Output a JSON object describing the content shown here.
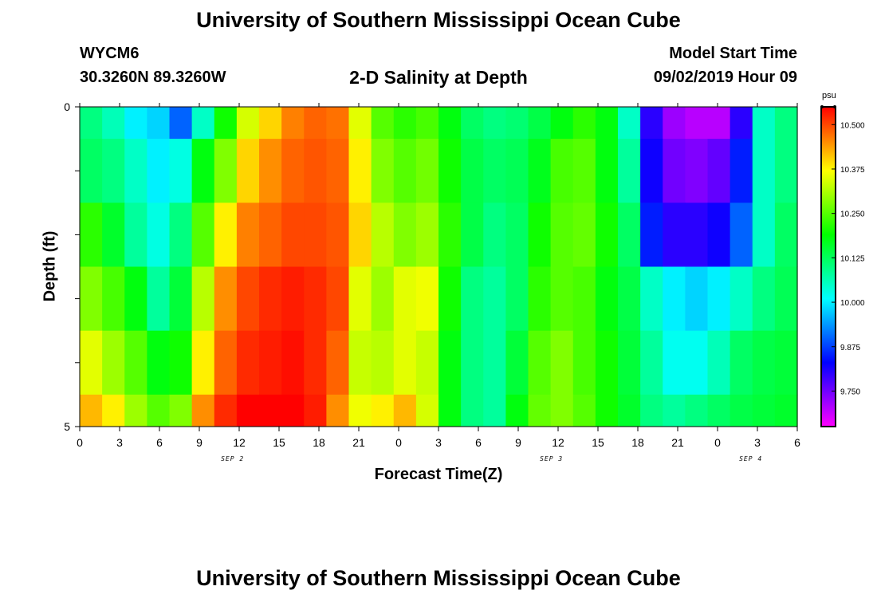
{
  "header": {
    "title": "University of Southern Mississippi Ocean Cube",
    "station_id": "WYCM6",
    "station_coords": "30.3260N 89.3260W",
    "model_label": "Model Start Time",
    "model_start": "09/02/2019 Hour 09",
    "footer_title": "University of Southern Mississippi Ocean Cube"
  },
  "chart_data": {
    "type": "heatmap",
    "title": "2-D Salinity at Depth",
    "xlabel": "Forecast Time(Z)",
    "ylabel": "Depth (ft)",
    "x_hours": [
      0,
      54
    ],
    "y_range": [
      0,
      5
    ],
    "x_tick_labels": [
      "0",
      "3",
      "6",
      "9",
      "12",
      "15",
      "18",
      "21",
      "0",
      "3",
      "6",
      "9",
      "12",
      "15",
      "18",
      "21",
      "0",
      "3",
      "6"
    ],
    "y_tick_labels": [
      "0",
      "5"
    ],
    "date_labels": [
      {
        "text": "SEP 2",
        "hour": 11.5
      },
      {
        "text": "SEP 3",
        "hour": 35.5
      },
      {
        "text": "SEP 4",
        "hour": 50.5
      }
    ],
    "depth_rows": [
      0.0,
      0.5,
      1.5,
      2.5,
      3.5,
      4.5
    ],
    "salinity_rows": [
      [
        10.1,
        10.06,
        10.0,
        9.98,
        9.9,
        10.05,
        10.2,
        10.34,
        10.4,
        10.46,
        10.48,
        10.47,
        10.35,
        10.25,
        10.22,
        10.24,
        10.18,
        10.12,
        10.1,
        10.11,
        10.14,
        10.18,
        10.22,
        10.18,
        10.05,
        9.8,
        9.72,
        9.7,
        9.7,
        9.8,
        10.05,
        10.1
      ],
      [
        10.12,
        10.1,
        10.05,
        10.0,
        10.03,
        10.18,
        10.28,
        10.4,
        10.45,
        10.48,
        10.49,
        10.48,
        10.38,
        10.28,
        10.25,
        10.27,
        10.2,
        10.14,
        10.12,
        10.13,
        10.17,
        10.24,
        10.25,
        10.18,
        10.08,
        9.82,
        9.75,
        9.74,
        9.76,
        9.85,
        10.05,
        10.1
      ],
      [
        10.22,
        10.16,
        10.08,
        10.03,
        10.1,
        10.25,
        10.38,
        10.46,
        10.48,
        10.5,
        10.5,
        10.49,
        10.4,
        10.32,
        10.28,
        10.3,
        10.22,
        10.14,
        10.1,
        10.12,
        10.2,
        10.25,
        10.26,
        10.2,
        10.12,
        9.85,
        9.8,
        9.8,
        9.82,
        9.9,
        10.05,
        10.12
      ],
      [
        10.28,
        10.24,
        10.18,
        10.08,
        10.15,
        10.32,
        10.45,
        10.5,
        10.52,
        10.53,
        10.52,
        10.5,
        10.35,
        10.3,
        10.35,
        10.36,
        10.2,
        10.1,
        10.08,
        10.12,
        10.22,
        10.25,
        10.24,
        10.18,
        10.14,
        10.05,
        10.0,
        9.98,
        10.0,
        10.05,
        10.1,
        10.13
      ],
      [
        10.35,
        10.3,
        10.25,
        10.18,
        10.2,
        10.38,
        10.48,
        10.52,
        10.53,
        10.54,
        10.52,
        10.48,
        10.33,
        10.32,
        10.35,
        10.33,
        10.18,
        10.1,
        10.08,
        10.15,
        10.25,
        10.28,
        10.24,
        10.2,
        10.15,
        10.08,
        10.02,
        10.02,
        10.06,
        10.12,
        10.14,
        10.15
      ],
      [
        10.42,
        10.38,
        10.3,
        10.25,
        10.28,
        10.45,
        10.52,
        10.55,
        10.55,
        10.55,
        10.53,
        10.45,
        10.36,
        10.38,
        10.42,
        10.34,
        10.18,
        10.1,
        10.08,
        10.18,
        10.26,
        10.28,
        10.25,
        10.2,
        10.16,
        10.1,
        10.08,
        10.1,
        10.12,
        10.14,
        10.15,
        10.16
      ]
    ],
    "colorbar": {
      "unit": "psu",
      "min": 9.65,
      "max": 10.55,
      "tick_labels": [
        "10.500",
        "10.375",
        "10.250",
        "10.125",
        "10.000",
        "9.875",
        "9.750"
      ],
      "tick_values": [
        10.5,
        10.375,
        10.25,
        10.125,
        10.0,
        9.875,
        9.75
      ]
    }
  }
}
